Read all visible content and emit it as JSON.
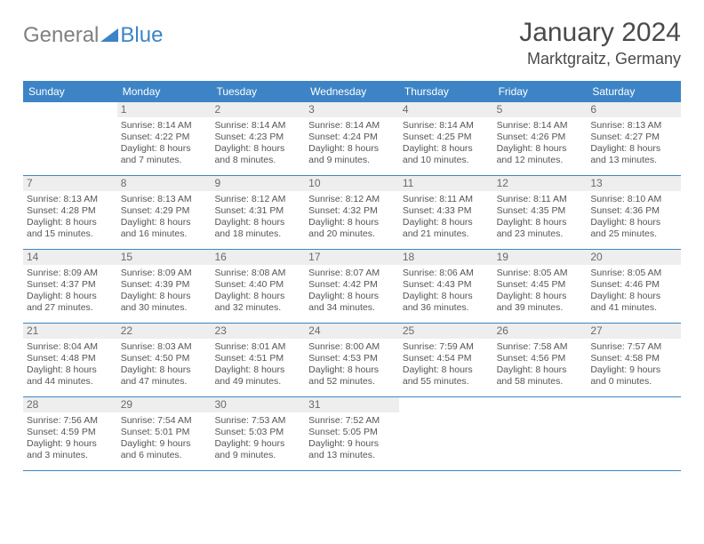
{
  "logo": {
    "part1": "General",
    "part2": "Blue"
  },
  "header": {
    "month": "January 2024",
    "location": "Marktgraitz, Germany"
  },
  "colors": {
    "header_bg": "#3d84c6",
    "border": "#3d84c6",
    "daybg": "#eeeeee",
    "text": "#555555"
  },
  "dayNames": [
    "Sunday",
    "Monday",
    "Tuesday",
    "Wednesday",
    "Thursday",
    "Friday",
    "Saturday"
  ],
  "weeks": [
    [
      null,
      {
        "n": "1",
        "rise": "Sunrise: 8:14 AM",
        "set": "Sunset: 4:22 PM",
        "d1": "Daylight: 8 hours",
        "d2": "and 7 minutes."
      },
      {
        "n": "2",
        "rise": "Sunrise: 8:14 AM",
        "set": "Sunset: 4:23 PM",
        "d1": "Daylight: 8 hours",
        "d2": "and 8 minutes."
      },
      {
        "n": "3",
        "rise": "Sunrise: 8:14 AM",
        "set": "Sunset: 4:24 PM",
        "d1": "Daylight: 8 hours",
        "d2": "and 9 minutes."
      },
      {
        "n": "4",
        "rise": "Sunrise: 8:14 AM",
        "set": "Sunset: 4:25 PM",
        "d1": "Daylight: 8 hours",
        "d2": "and 10 minutes."
      },
      {
        "n": "5",
        "rise": "Sunrise: 8:14 AM",
        "set": "Sunset: 4:26 PM",
        "d1": "Daylight: 8 hours",
        "d2": "and 12 minutes."
      },
      {
        "n": "6",
        "rise": "Sunrise: 8:13 AM",
        "set": "Sunset: 4:27 PM",
        "d1": "Daylight: 8 hours",
        "d2": "and 13 minutes."
      }
    ],
    [
      {
        "n": "7",
        "rise": "Sunrise: 8:13 AM",
        "set": "Sunset: 4:28 PM",
        "d1": "Daylight: 8 hours",
        "d2": "and 15 minutes."
      },
      {
        "n": "8",
        "rise": "Sunrise: 8:13 AM",
        "set": "Sunset: 4:29 PM",
        "d1": "Daylight: 8 hours",
        "d2": "and 16 minutes."
      },
      {
        "n": "9",
        "rise": "Sunrise: 8:12 AM",
        "set": "Sunset: 4:31 PM",
        "d1": "Daylight: 8 hours",
        "d2": "and 18 minutes."
      },
      {
        "n": "10",
        "rise": "Sunrise: 8:12 AM",
        "set": "Sunset: 4:32 PM",
        "d1": "Daylight: 8 hours",
        "d2": "and 20 minutes."
      },
      {
        "n": "11",
        "rise": "Sunrise: 8:11 AM",
        "set": "Sunset: 4:33 PM",
        "d1": "Daylight: 8 hours",
        "d2": "and 21 minutes."
      },
      {
        "n": "12",
        "rise": "Sunrise: 8:11 AM",
        "set": "Sunset: 4:35 PM",
        "d1": "Daylight: 8 hours",
        "d2": "and 23 minutes."
      },
      {
        "n": "13",
        "rise": "Sunrise: 8:10 AM",
        "set": "Sunset: 4:36 PM",
        "d1": "Daylight: 8 hours",
        "d2": "and 25 minutes."
      }
    ],
    [
      {
        "n": "14",
        "rise": "Sunrise: 8:09 AM",
        "set": "Sunset: 4:37 PM",
        "d1": "Daylight: 8 hours",
        "d2": "and 27 minutes."
      },
      {
        "n": "15",
        "rise": "Sunrise: 8:09 AM",
        "set": "Sunset: 4:39 PM",
        "d1": "Daylight: 8 hours",
        "d2": "and 30 minutes."
      },
      {
        "n": "16",
        "rise": "Sunrise: 8:08 AM",
        "set": "Sunset: 4:40 PM",
        "d1": "Daylight: 8 hours",
        "d2": "and 32 minutes."
      },
      {
        "n": "17",
        "rise": "Sunrise: 8:07 AM",
        "set": "Sunset: 4:42 PM",
        "d1": "Daylight: 8 hours",
        "d2": "and 34 minutes."
      },
      {
        "n": "18",
        "rise": "Sunrise: 8:06 AM",
        "set": "Sunset: 4:43 PM",
        "d1": "Daylight: 8 hours",
        "d2": "and 36 minutes."
      },
      {
        "n": "19",
        "rise": "Sunrise: 8:05 AM",
        "set": "Sunset: 4:45 PM",
        "d1": "Daylight: 8 hours",
        "d2": "and 39 minutes."
      },
      {
        "n": "20",
        "rise": "Sunrise: 8:05 AM",
        "set": "Sunset: 4:46 PM",
        "d1": "Daylight: 8 hours",
        "d2": "and 41 minutes."
      }
    ],
    [
      {
        "n": "21",
        "rise": "Sunrise: 8:04 AM",
        "set": "Sunset: 4:48 PM",
        "d1": "Daylight: 8 hours",
        "d2": "and 44 minutes."
      },
      {
        "n": "22",
        "rise": "Sunrise: 8:03 AM",
        "set": "Sunset: 4:50 PM",
        "d1": "Daylight: 8 hours",
        "d2": "and 47 minutes."
      },
      {
        "n": "23",
        "rise": "Sunrise: 8:01 AM",
        "set": "Sunset: 4:51 PM",
        "d1": "Daylight: 8 hours",
        "d2": "and 49 minutes."
      },
      {
        "n": "24",
        "rise": "Sunrise: 8:00 AM",
        "set": "Sunset: 4:53 PM",
        "d1": "Daylight: 8 hours",
        "d2": "and 52 minutes."
      },
      {
        "n": "25",
        "rise": "Sunrise: 7:59 AM",
        "set": "Sunset: 4:54 PM",
        "d1": "Daylight: 8 hours",
        "d2": "and 55 minutes."
      },
      {
        "n": "26",
        "rise": "Sunrise: 7:58 AM",
        "set": "Sunset: 4:56 PM",
        "d1": "Daylight: 8 hours",
        "d2": "and 58 minutes."
      },
      {
        "n": "27",
        "rise": "Sunrise: 7:57 AM",
        "set": "Sunset: 4:58 PM",
        "d1": "Daylight: 9 hours",
        "d2": "and 0 minutes."
      }
    ],
    [
      {
        "n": "28",
        "rise": "Sunrise: 7:56 AM",
        "set": "Sunset: 4:59 PM",
        "d1": "Daylight: 9 hours",
        "d2": "and 3 minutes."
      },
      {
        "n": "29",
        "rise": "Sunrise: 7:54 AM",
        "set": "Sunset: 5:01 PM",
        "d1": "Daylight: 9 hours",
        "d2": "and 6 minutes."
      },
      {
        "n": "30",
        "rise": "Sunrise: 7:53 AM",
        "set": "Sunset: 5:03 PM",
        "d1": "Daylight: 9 hours",
        "d2": "and 9 minutes."
      },
      {
        "n": "31",
        "rise": "Sunrise: 7:52 AM",
        "set": "Sunset: 5:05 PM",
        "d1": "Daylight: 9 hours",
        "d2": "and 13 minutes."
      },
      null,
      null,
      null
    ]
  ]
}
